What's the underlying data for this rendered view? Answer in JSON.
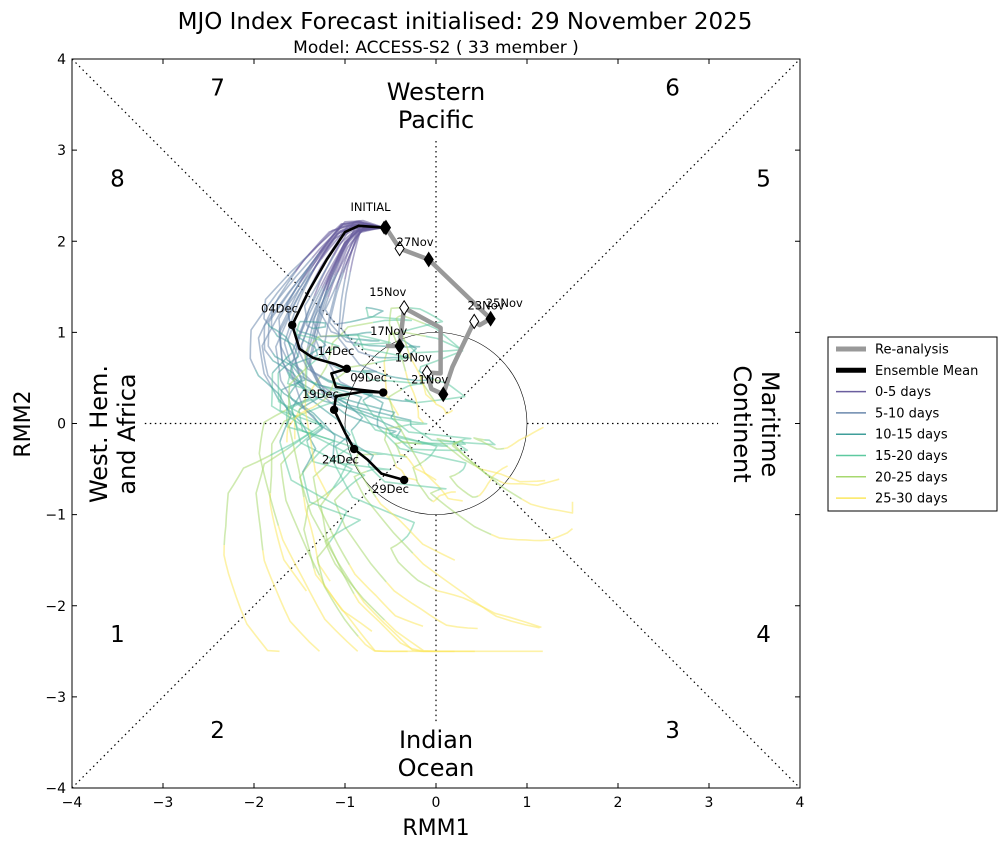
{
  "chart_data": {
    "type": "line",
    "title": "MJO Index Forecast initialised:  29  November 2025",
    "subtitle": "Model: ACCESS-S2 ( 33 member )",
    "xlabel": "RMM1",
    "ylabel": "RMM2",
    "xlim": [
      -4,
      4
    ],
    "ylim": [
      -4,
      4
    ],
    "ticks": [
      -4,
      -3,
      -2,
      -1,
      0,
      1,
      2,
      3,
      4
    ],
    "tick_labels": [
      "−4",
      "−3",
      "−2",
      "−1",
      "0",
      "1",
      "2",
      "3",
      "4"
    ],
    "phases": [
      {
        "label": "1",
        "x": -3.5,
        "y": -2.4
      },
      {
        "label": "2",
        "x": -2.4,
        "y": -3.45
      },
      {
        "label": "3",
        "x": 2.6,
        "y": -3.45
      },
      {
        "label": "4",
        "x": 3.6,
        "y": -2.4
      },
      {
        "label": "5",
        "x": 3.6,
        "y": 2.6
      },
      {
        "label": "6",
        "x": 2.6,
        "y": 3.6
      },
      {
        "label": "7",
        "x": -2.4,
        "y": 3.6
      },
      {
        "label": "8",
        "x": -3.5,
        "y": 2.6
      }
    ],
    "regions": {
      "top": [
        "Western",
        "Pacific"
      ],
      "bottom": [
        "Indian",
        "Ocean"
      ],
      "left": [
        "West. Hem.",
        "and Africa"
      ],
      "right": [
        "Maritime",
        "Continent"
      ]
    },
    "reanalysis": {
      "name": "Re-analysis",
      "color": "#999999",
      "points": [
        [
          0.05,
          1.05
        ],
        [
          -0.55,
          0.85
        ],
        [
          -0.35,
          1.27
        ],
        [
          0.42,
          1.32
        ],
        [
          0.48,
          1.08
        ],
        [
          0.18,
          0.62
        ],
        [
          -0.05,
          0.38
        ]
      ],
      "markers": [
        [
          -0.55,
          2.15
        ],
        [
          -0.4,
          1.92
        ],
        [
          -0.08,
          1.8
        ],
        [
          0.42,
          1.12
        ],
        [
          0.6,
          1.15
        ],
        [
          -0.35,
          1.27
        ],
        [
          -0.4,
          0.85
        ],
        [
          -0.1,
          0.56
        ],
        [
          0.08,
          0.32
        ]
      ],
      "path": [
        [
          -0.55,
          2.15
        ],
        [
          -0.4,
          1.92
        ],
        [
          -0.08,
          1.8
        ],
        [
          0.42,
          1.32
        ],
        [
          0.6,
          1.15
        ],
        [
          0.48,
          1.08
        ],
        [
          0.42,
          1.12
        ],
        [
          0.18,
          0.62
        ],
        [
          0.08,
          0.32
        ],
        [
          -0.05,
          0.38
        ],
        [
          -0.1,
          0.56
        ],
        [
          0.05,
          0.55
        ],
        [
          0.05,
          1.05
        ],
        [
          -0.35,
          1.27
        ],
        [
          -0.4,
          0.85
        ],
        [
          -0.55,
          0.85
        ]
      ]
    },
    "ensemble_mean": {
      "name": "Ensemble Mean",
      "color": "#000000",
      "points": [
        [
          -0.57,
          2.15
        ],
        [
          -0.85,
          2.17
        ],
        [
          -1.0,
          2.1
        ],
        [
          -1.2,
          1.8
        ],
        [
          -1.4,
          1.45
        ],
        [
          -1.58,
          1.08
        ],
        [
          -1.5,
          0.82
        ],
        [
          -1.35,
          0.72
        ],
        [
          -1.1,
          0.65
        ],
        [
          -0.98,
          0.6
        ],
        [
          -1.15,
          0.55
        ],
        [
          -1.1,
          0.4
        ],
        [
          -0.58,
          0.34
        ],
        [
          -0.8,
          0.35
        ],
        [
          -1.1,
          0.3
        ],
        [
          -1.12,
          0.15
        ],
        [
          -1.0,
          -0.1
        ],
        [
          -0.9,
          -0.28
        ],
        [
          -0.75,
          -0.4
        ],
        [
          -0.6,
          -0.55
        ],
        [
          -0.35,
          -0.62
        ]
      ],
      "markers": [
        [
          -1.58,
          1.08
        ],
        [
          -0.98,
          0.6
        ],
        [
          -0.58,
          0.34
        ],
        [
          -1.12,
          0.15
        ],
        [
          -0.9,
          -0.28
        ],
        [
          -0.35,
          -0.62
        ]
      ]
    },
    "date_labels": [
      {
        "text": "INITIAL",
        "x": -0.72,
        "y": 2.33
      },
      {
        "text": "27Nov",
        "x": -0.23,
        "y": 1.95
      },
      {
        "text": "25Nov",
        "x": 0.75,
        "y": 1.28
      },
      {
        "text": "23Nov",
        "x": 0.55,
        "y": 1.25
      },
      {
        "text": "15Nov",
        "x": -0.53,
        "y": 1.4
      },
      {
        "text": "17Nov",
        "x": -0.52,
        "y": 0.97
      },
      {
        "text": "19Nov",
        "x": -0.25,
        "y": 0.68
      },
      {
        "text": "21Nov",
        "x": -0.07,
        "y": 0.44
      },
      {
        "text": "04Dec",
        "x": -1.72,
        "y": 1.22
      },
      {
        "text": "14Dec",
        "x": -1.1,
        "y": 0.75
      },
      {
        "text": "09Dec",
        "x": -0.74,
        "y": 0.46
      },
      {
        "text": "19Dec",
        "x": -1.27,
        "y": 0.28
      },
      {
        "text": "24Dec",
        "x": -1.05,
        "y": -0.44
      },
      {
        "text": "29Dec",
        "x": -0.5,
        "y": -0.76
      }
    ],
    "legend": [
      {
        "label": "Re-analysis",
        "color": "#999999",
        "width": 5
      },
      {
        "label": "Ensemble Mean",
        "color": "#000000",
        "width": 5
      },
      {
        "label": "0-5 days",
        "color": "#6a5e9e",
        "width": 1.5
      },
      {
        "label": "5-10 days",
        "color": "#6b89ad",
        "width": 1.5
      },
      {
        "label": "10-15 days",
        "color": "#3f9e9a",
        "width": 1.5
      },
      {
        "label": "15-20 days",
        "color": "#5ec9a0",
        "width": 1.5
      },
      {
        "label": "20-25 days",
        "color": "#a7d86f",
        "width": 1.5
      },
      {
        "label": "25-30 days",
        "color": "#fbe75e",
        "width": 1.5
      }
    ],
    "members": 33,
    "amplitude_circle_radius": 1
  }
}
